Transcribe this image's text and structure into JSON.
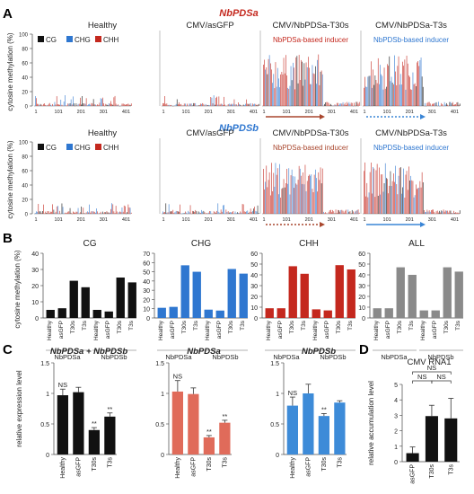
{
  "colors": {
    "CG": "#111111",
    "CHG": "#2f77d0",
    "CHH": "#c4281e",
    "ALL": "#8a8a8a",
    "sense": "#a9472e",
    "antisense": "#3a85d6",
    "pds_a": "#c4281e",
    "pds_b": "#2f77d0",
    "panelC_a": "#e06b5a",
    "panelC_b": "#3d8bd8",
    "axis": "#444444"
  },
  "panel_labels": {
    "A": "A",
    "B": "B",
    "C": "C",
    "D": "D"
  },
  "panelA": {
    "ylabel": "cytosine methylation (%)",
    "yticks": [
      "0",
      "20",
      "40",
      "60",
      "80",
      "100"
    ],
    "xticks": [
      "1",
      "101",
      "201",
      "301",
      "401"
    ],
    "legend": [
      "CG",
      "CHG",
      "CHH"
    ],
    "genes": [
      {
        "gene": "NbPDSa",
        "samples": [
          {
            "title": "Healthy",
            "inducer": "",
            "level": 0.07
          },
          {
            "title": "CMV/asGFP",
            "inducer": "",
            "level": 0.05
          },
          {
            "title": "CMV/NbPDSa-T30s",
            "inducer": "NbPDSa-based inducer",
            "inducer_color": "pds_a",
            "arrow": "solid",
            "level": 0.5
          },
          {
            "title": "CMV/NbPDSa-T3s",
            "inducer": "NbPDSb-based inducer",
            "inducer_color": "pds_b",
            "arrow": "dotted",
            "level": 0.45
          }
        ]
      },
      {
        "gene": "NbPDSb",
        "samples": [
          {
            "title": "Healthy",
            "inducer": "",
            "level": 0.06
          },
          {
            "title": "CMV/asGFP",
            "inducer": "",
            "level": 0.04
          },
          {
            "title": "CMV/NbPDSa-T30s",
            "inducer": "NbPDSa-based inducer",
            "inducer_color": "sense",
            "arrow": "dotted",
            "level": 0.5
          },
          {
            "title": "CMV/NbPDSa-T3s",
            "inducer": "NbPDSb-based inducer",
            "inducer_color": "pds_b",
            "arrow": "solid",
            "level": 0.45
          }
        ]
      }
    ]
  },
  "chart_data": [
    {
      "type": "bar",
      "panel": "B",
      "ylabel": "cytosine methylation (%)",
      "categories": [
        "Healthy",
        "asGFP",
        "T30s",
        "T3s",
        "Healthy",
        "asGFP",
        "T30s",
        "T3s"
      ],
      "groups": [
        "NbPDSa",
        "NbPDSb"
      ],
      "series": [
        {
          "name": "CG",
          "ylim": [
            0,
            40
          ],
          "yticks": [
            0,
            10,
            20,
            30,
            40
          ],
          "values": [
            5,
            6,
            23,
            19,
            5,
            4,
            25,
            22
          ]
        },
        {
          "name": "CHG",
          "ylim": [
            0,
            70
          ],
          "yticks": [
            0,
            10,
            20,
            30,
            40,
            50,
            60,
            70
          ],
          "values": [
            11,
            12,
            57,
            50,
            9,
            8,
            53,
            48
          ]
        },
        {
          "name": "CHH",
          "ylim": [
            0,
            60
          ],
          "yticks": [
            0,
            10,
            20,
            30,
            40,
            50,
            60
          ],
          "values": [
            9,
            9,
            48,
            41,
            8,
            7,
            49,
            45
          ]
        },
        {
          "name": "ALL",
          "ylim": [
            0,
            60
          ],
          "yticks": [
            0,
            10,
            20,
            30,
            40,
            50,
            60
          ],
          "values": [
            9,
            9,
            47,
            40,
            7,
            7,
            47,
            43
          ]
        }
      ]
    },
    {
      "type": "bar",
      "panel": "C",
      "ylabel": "relative expression level",
      "ylim": [
        0,
        1.5
      ],
      "yticks": [
        "0",
        "0.5",
        "1",
        "1.5"
      ],
      "categories": [
        "Healthy",
        "asGFP",
        "T30s",
        "T3s"
      ],
      "subplots": [
        {
          "title": "NbPDSa + NbPDSb",
          "color": "CG",
          "values": [
            0.97,
            1.02,
            0.4,
            0.62
          ],
          "errors": [
            0.1,
            0.08,
            0.04,
            0.06
          ],
          "marks": [
            "NS",
            "",
            "**",
            "**"
          ]
        },
        {
          "title": "NbPDSa",
          "color": "panelC_a",
          "values": [
            1.03,
            0.99,
            0.28,
            0.52
          ],
          "errors": [
            0.18,
            0.1,
            0.03,
            0.04
          ],
          "marks": [
            "NS",
            "",
            "**",
            "**"
          ]
        },
        {
          "title": "NbPDSb",
          "color": "panelC_b",
          "values": [
            0.8,
            1.0,
            0.63,
            0.85
          ],
          "errors": [
            0.14,
            0.15,
            0.04,
            0.03
          ],
          "marks": [
            "NS",
            "",
            "**",
            ""
          ]
        }
      ]
    },
    {
      "type": "bar",
      "panel": "D",
      "title": "CMV RNA1",
      "ylabel": "relative accumulation level",
      "ylim": [
        0,
        5
      ],
      "yticks": [
        "0",
        "1",
        "2",
        "3",
        "4",
        "5"
      ],
      "categories": [
        "asGFP",
        "T30s",
        "T3s"
      ],
      "values": [
        0.55,
        2.95,
        2.8
      ],
      "errors": [
        0.4,
        0.7,
        1.3
      ],
      "sig": [
        {
          "from": 0,
          "to": 1,
          "label": "NS",
          "level": 0
        },
        {
          "from": 1,
          "to": 2,
          "label": "NS",
          "level": 0
        },
        {
          "from": 0,
          "to": 2,
          "label": "NS",
          "level": 1
        }
      ]
    }
  ]
}
